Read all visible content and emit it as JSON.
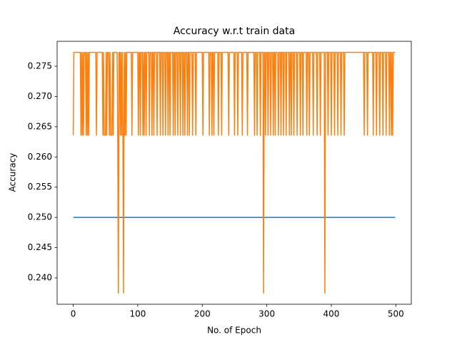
{
  "chart_data": {
    "type": "line",
    "title": "Accuracy w.r.t train data",
    "x_label": "No. of Epoch",
    "y_label": "Accuracy",
    "xlim": [
      -24.95,
      523.95
    ],
    "xticks": [
      0,
      100,
      200,
      300,
      400,
      500
    ],
    "ylim": [
      0.23564,
      0.27912
    ],
    "yticks": [
      {
        "value": 0.24,
        "label": "0.240"
      },
      0.245,
      {
        "value": 0.25,
        "label": "0.250"
      },
      0.255,
      {
        "value": 0.26,
        "label": "0.260"
      },
      0.265,
      {
        "value": 0.27,
        "label": "0.270"
      },
      0.275
    ],
    "grid": false,
    "series": [
      {
        "color": "#1f77b4",
        "x": [
          0,
          499
        ],
        "values": [
          0.25,
          0.25
        ]
      },
      {
        "color": "#ff7f0e",
        "x": [
          0,
          1,
          11,
          12,
          13,
          14,
          15,
          16,
          17,
          19,
          20,
          21,
          22,
          23,
          24,
          25,
          35,
          36,
          37,
          45,
          46,
          47,
          48,
          50,
          51,
          52,
          53,
          55,
          56,
          57,
          58,
          60,
          61,
          62,
          63,
          68,
          69,
          70,
          71,
          72,
          73,
          74,
          75,
          76,
          77,
          78,
          79,
          80,
          81,
          82,
          83,
          90,
          91,
          92,
          100,
          101,
          102,
          103,
          104,
          105,
          107,
          108,
          109,
          110,
          111,
          112,
          113,
          114,
          117,
          118,
          119,
          121,
          122,
          123,
          124,
          125,
          126,
          129,
          130,
          131,
          134,
          135,
          136,
          138,
          139,
          140,
          142,
          143,
          144,
          146,
          147,
          148,
          149,
          150,
          151,
          154,
          155,
          156,
          157,
          158,
          159,
          161,
          162,
          163,
          165,
          166,
          167,
          169,
          170,
          171,
          172,
          173,
          174,
          176,
          177,
          178,
          179,
          180,
          181,
          184,
          185,
          186,
          189,
          190,
          191,
          200,
          201,
          202,
          210,
          211,
          212,
          214,
          215,
          216,
          217,
          218,
          219,
          224,
          225,
          226,
          229,
          230,
          231,
          240,
          241,
          242,
          249,
          250,
          251,
          254,
          255,
          256,
          261,
          262,
          263,
          269,
          270,
          271,
          280,
          281,
          282,
          284,
          285,
          286,
          289,
          290,
          291,
          294,
          295,
          296,
          297,
          298,
          299,
          301,
          302,
          303,
          305,
          306,
          307,
          309,
          310,
          311,
          312,
          313,
          314,
          317,
          318,
          319,
          321,
          322,
          323,
          325,
          326,
          327,
          329,
          330,
          331,
          334,
          335,
          336,
          337,
          338,
          339,
          341,
          342,
          343,
          346,
          347,
          348,
          351,
          352,
          353,
          355,
          356,
          357,
          361,
          362,
          363,
          365,
          366,
          367,
          371,
          372,
          373,
          377,
          378,
          379,
          382,
          383,
          384,
          389,
          390,
          391,
          394,
          395,
          396,
          399,
          400,
          401,
          404,
          405,
          406,
          409,
          410,
          411,
          414,
          415,
          416,
          419,
          420,
          421,
          450,
          451,
          452,
          455,
          456,
          457,
          464,
          465,
          466,
          469,
          470,
          471,
          474,
          475,
          476,
          479,
          480,
          481,
          484,
          485,
          486,
          489,
          490,
          491,
          492,
          493,
          494,
          495,
          496,
          499
        ],
        "values": [
          0.2636,
          0.2773,
          0.2773,
          0.2636,
          0.2773,
          0.2636,
          0.2773,
          0.2636,
          0.2773,
          0.2773,
          0.2636,
          0.2773,
          0.2636,
          0.2773,
          0.2636,
          0.2773,
          0.2773,
          0.2636,
          0.2773,
          0.2773,
          0.2636,
          0.2773,
          0.2636,
          0.2636,
          0.2773,
          0.2636,
          0.2773,
          0.2773,
          0.2636,
          0.2773,
          0.2636,
          0.2636,
          0.2773,
          0.2636,
          0.2773,
          0.2773,
          0.2636,
          0.2375,
          0.2773,
          0.2773,
          0.2636,
          0.2773,
          0.2636,
          0.2773,
          0.2636,
          0.2375,
          0.2773,
          0.2636,
          0.2773,
          0.2636,
          0.2773,
          0.2773,
          0.2636,
          0.2773,
          0.2773,
          0.2636,
          0.2773,
          0.2773,
          0.2636,
          0.2773,
          0.2773,
          0.2636,
          0.2773,
          0.2636,
          0.2773,
          0.2773,
          0.2636,
          0.2773,
          0.2773,
          0.2636,
          0.2773,
          0.2773,
          0.2636,
          0.2773,
          0.2773,
          0.2636,
          0.2773,
          0.2773,
          0.2636,
          0.2773,
          0.2773,
          0.2636,
          0.2773,
          0.2773,
          0.2636,
          0.2773,
          0.2773,
          0.2636,
          0.2773,
          0.2773,
          0.2636,
          0.2773,
          0.2773,
          0.2636,
          0.2773,
          0.2773,
          0.2636,
          0.2773,
          0.2773,
          0.2636,
          0.2773,
          0.2773,
          0.2636,
          0.2773,
          0.2773,
          0.2636,
          0.2773,
          0.2773,
          0.2636,
          0.2773,
          0.2773,
          0.2636,
          0.2773,
          0.2773,
          0.2636,
          0.2773,
          0.2773,
          0.2636,
          0.2773,
          0.2773,
          0.2636,
          0.2773,
          0.2773,
          0.2636,
          0.2773,
          0.2773,
          0.2636,
          0.2773,
          0.2773,
          0.2636,
          0.2773,
          0.2773,
          0.2636,
          0.2773,
          0.2773,
          0.2636,
          0.2773,
          0.2773,
          0.2636,
          0.2773,
          0.2773,
          0.2636,
          0.2773,
          0.2773,
          0.2636,
          0.2773,
          0.2773,
          0.2636,
          0.2773,
          0.2773,
          0.2636,
          0.2773,
          0.2773,
          0.2636,
          0.2773,
          0.2773,
          0.2636,
          0.2773,
          0.2773,
          0.2636,
          0.2773,
          0.2773,
          0.2636,
          0.2773,
          0.2773,
          0.2636,
          0.2773,
          0.2773,
          0.2375,
          0.2773,
          0.2773,
          0.2636,
          0.2773,
          0.2773,
          0.2636,
          0.2773,
          0.2773,
          0.2636,
          0.2773,
          0.2773,
          0.2636,
          0.2773,
          0.2773,
          0.2636,
          0.2773,
          0.2773,
          0.2636,
          0.2773,
          0.2773,
          0.2636,
          0.2773,
          0.2773,
          0.2636,
          0.2773,
          0.2773,
          0.2636,
          0.2773,
          0.2773,
          0.2636,
          0.2773,
          0.2773,
          0.2636,
          0.2773,
          0.2773,
          0.2636,
          0.2773,
          0.2773,
          0.2636,
          0.2773,
          0.2773,
          0.2636,
          0.2773,
          0.2773,
          0.2636,
          0.2773,
          0.2773,
          0.2636,
          0.2773,
          0.2773,
          0.2636,
          0.2773,
          0.2773,
          0.2636,
          0.2773,
          0.2773,
          0.2636,
          0.2773,
          0.2773,
          0.2636,
          0.2773,
          0.2773,
          0.2375,
          0.2773,
          0.2773,
          0.2636,
          0.2773,
          0.2773,
          0.2636,
          0.2773,
          0.2773,
          0.2636,
          0.2773,
          0.2773,
          0.2636,
          0.2773,
          0.2773,
          0.2636,
          0.2773,
          0.2773,
          0.2636,
          0.2773,
          0.2773,
          0.2636,
          0.2773,
          0.2773,
          0.2636,
          0.2773,
          0.2773,
          0.2636,
          0.2773,
          0.2773,
          0.2636,
          0.2773,
          0.2773,
          0.2636,
          0.2773,
          0.2773,
          0.2636,
          0.2773,
          0.2773,
          0.2636,
          0.2773,
          0.2773,
          0.2636,
          0.2773,
          0.2773,
          0.2636,
          0.2773,
          0.2636,
          0.2773,
          0.2773
        ]
      }
    ]
  }
}
